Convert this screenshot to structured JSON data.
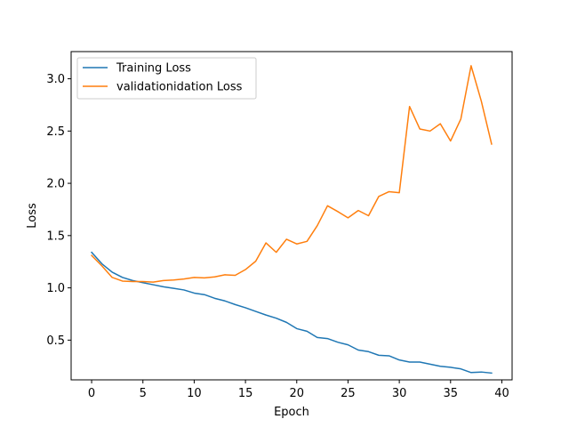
{
  "chart_data": {
    "type": "line",
    "xlabel": "Epoch",
    "ylabel": "Loss",
    "xlim": [
      -2,
      41
    ],
    "ylim": [
      0.12,
      3.26
    ],
    "xticks": [
      0,
      5,
      10,
      15,
      20,
      25,
      30,
      35,
      40
    ],
    "yticks": [
      0.5,
      1.0,
      1.5,
      2.0,
      2.5,
      3.0
    ],
    "grid": false,
    "legend_position": "top-left",
    "x": [
      0,
      1,
      2,
      3,
      4,
      5,
      6,
      7,
      8,
      9,
      10,
      11,
      12,
      13,
      14,
      15,
      16,
      17,
      18,
      19,
      20,
      21,
      22,
      23,
      24,
      25,
      26,
      27,
      28,
      29,
      30,
      31,
      32,
      33,
      34,
      35,
      36,
      37,
      38,
      39
    ],
    "series": [
      {
        "name": "Training Loss",
        "color": "#1f77b4",
        "values": [
          1.34,
          1.23,
          1.15,
          1.1,
          1.07,
          1.05,
          1.03,
          1.01,
          0.995,
          0.98,
          0.95,
          0.935,
          0.9,
          0.875,
          0.84,
          0.81,
          0.775,
          0.74,
          0.71,
          0.67,
          0.61,
          0.585,
          0.525,
          0.515,
          0.48,
          0.455,
          0.405,
          0.39,
          0.355,
          0.35,
          0.31,
          0.29,
          0.29,
          0.27,
          0.25,
          0.24,
          0.225,
          0.19,
          0.195,
          0.185
        ]
      },
      {
        "name": "validationidation Loss",
        "color": "#ff7f0e",
        "values": [
          1.31,
          1.21,
          1.1,
          1.065,
          1.06,
          1.06,
          1.055,
          1.07,
          1.075,
          1.085,
          1.1,
          1.095,
          1.105,
          1.125,
          1.12,
          1.175,
          1.255,
          1.43,
          1.34,
          1.465,
          1.42,
          1.445,
          1.595,
          1.785,
          1.73,
          1.67,
          1.74,
          1.69,
          1.875,
          1.92,
          1.91,
          2.735,
          2.52,
          2.5,
          2.57,
          2.405,
          2.615,
          3.125,
          2.785,
          2.375
        ]
      }
    ]
  }
}
